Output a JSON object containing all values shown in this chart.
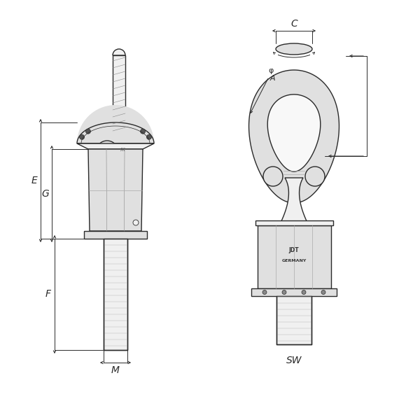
{
  "bg_color": "#ffffff",
  "line_color": "#2a2a2a",
  "dim_color": "#2a2a2a",
  "fig_width": 6.0,
  "fig_height": 6.0,
  "lw_main": 1.0,
  "lw_dim": 0.7,
  "lw_thin": 0.5,
  "labels": {
    "E": "E",
    "G": "G",
    "F": "F",
    "M": "M",
    "C": "C",
    "phi": "φ",
    "A": "A",
    "SW": "SW"
  }
}
